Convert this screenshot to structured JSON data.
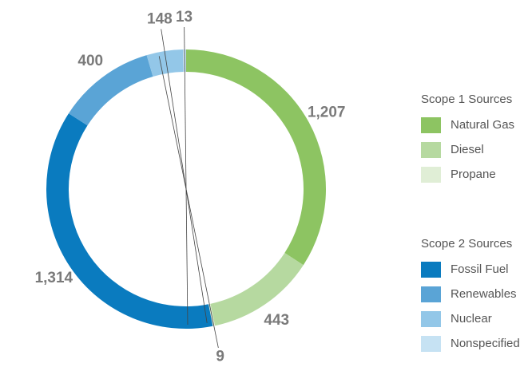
{
  "chart_data": {
    "type": "pie",
    "groups": [
      {
        "name": "Scope 1 Sources",
        "categories": [
          "Natural Gas",
          "Diesel",
          "Propane"
        ],
        "values": [
          1207,
          443,
          9
        ],
        "value_labels": [
          "1,207",
          "443",
          "9"
        ],
        "colors": [
          "#8dc462",
          "#b6d9a0",
          "#e0eed6"
        ]
      },
      {
        "name": "Scope 2 Sources",
        "categories": [
          "Fossil Fuel",
          "Renewables",
          "Nuclear",
          "Nonspecified"
        ],
        "values": [
          1314,
          400,
          148,
          13
        ],
        "value_labels": [
          "1,314",
          "400",
          "148",
          "13"
        ],
        "colors": [
          "#0a7bbf",
          "#5aa4d6",
          "#93c7e8",
          "#c6e2f3"
        ]
      }
    ]
  }
}
